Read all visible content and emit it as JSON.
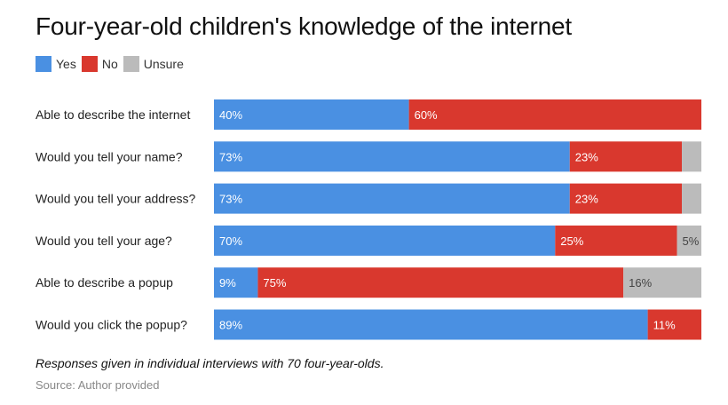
{
  "chart_data": {
    "type": "bar",
    "orientation": "horizontal",
    "stacked": true,
    "title": "Four-year-old children's knowledge of the internet",
    "legend_position": "top-left",
    "xlim": [
      0,
      100
    ],
    "categories": [
      "Able to describe the internet",
      "Would you tell your name?",
      "Would you tell your address?",
      "Would you tell your age?",
      "Able to describe a popup",
      "Would you click the popup?"
    ],
    "series": [
      {
        "name": "Yes",
        "color": "#4a90e2",
        "values": [
          40,
          73,
          73,
          70,
          9,
          89
        ],
        "labels": [
          "40%",
          "73%",
          "73%",
          "70%",
          "9%",
          "89%"
        ]
      },
      {
        "name": "No",
        "color": "#d9382e",
        "values": [
          60,
          23,
          23,
          25,
          75,
          11
        ],
        "labels": [
          "60%",
          "23%",
          "23%",
          "25%",
          "75%",
          "11%"
        ]
      },
      {
        "name": "Unsure",
        "color": "#bbbbbb",
        "values": [
          0,
          4,
          4,
          5,
          16,
          0
        ],
        "labels": [
          "",
          "",
          "",
          "5%",
          "16%",
          ""
        ]
      }
    ]
  },
  "caption": "Responses given in individual interviews with 70 four-year-olds.",
  "source": "Source: Author provided"
}
